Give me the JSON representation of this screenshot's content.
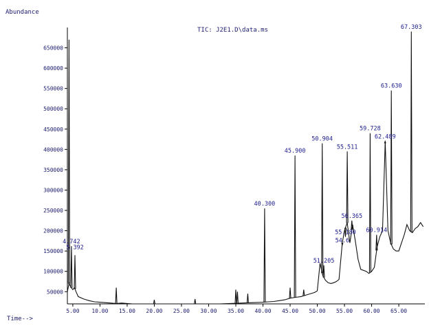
{
  "chart_data": {
    "type": "line",
    "title": "TIC: J2E1.D\\data.ms",
    "ylabel": "Abundance",
    "xlabel": "Time-->",
    "xlim": [
      4.0,
      69.8
    ],
    "ylim": [
      20000,
      700000
    ],
    "x_ticks": [
      {
        "v": 5,
        "label": "5.00"
      },
      {
        "v": 10,
        "label": "10.00"
      },
      {
        "v": 15,
        "label": "15.00"
      },
      {
        "v": 20,
        "label": "20.00"
      },
      {
        "v": 25,
        "label": "25.00"
      },
      {
        "v": 30,
        "label": "30.00"
      },
      {
        "v": 35,
        "label": "35.00"
      },
      {
        "v": 40,
        "label": "40.00"
      },
      {
        "v": 45,
        "label": "45.00"
      },
      {
        "v": 50,
        "label": "50.00"
      },
      {
        "v": 55,
        "label": "55.00"
      },
      {
        "v": 60,
        "label": "60.00"
      },
      {
        "v": 65,
        "label": "65.00"
      }
    ],
    "y_ticks": [
      {
        "v": 50000,
        "label": "50000"
      },
      {
        "v": 100000,
        "label": "100000"
      },
      {
        "v": 150000,
        "label": "150000"
      },
      {
        "v": 200000,
        "label": "200000"
      },
      {
        "v": 250000,
        "label": "250000"
      },
      {
        "v": 300000,
        "label": "300000"
      },
      {
        "v": 350000,
        "label": "350000"
      },
      {
        "v": 400000,
        "label": "400000"
      },
      {
        "v": 450000,
        "label": "450000"
      },
      {
        "v": 500000,
        "label": "500000"
      },
      {
        "v": 550000,
        "label": "550000"
      },
      {
        "v": 600000,
        "label": "600000"
      },
      {
        "v": 650000,
        "label": "650000"
      }
    ],
    "baseline": [
      [
        4.0,
        50000
      ],
      [
        4.3,
        70000
      ],
      [
        4.6,
        62000
      ],
      [
        5.0,
        55000
      ],
      [
        5.3,
        60000
      ],
      [
        5.6,
        50000
      ],
      [
        6.0,
        38000
      ],
      [
        7.0,
        32000
      ],
      [
        8.0,
        28000
      ],
      [
        9.0,
        25000
      ],
      [
        10.0,
        24000
      ],
      [
        11.0,
        23000
      ],
      [
        12.0,
        22000
      ],
      [
        13.0,
        21000
      ],
      [
        14.0,
        22000
      ],
      [
        15.0,
        21000
      ],
      [
        16.0,
        20000
      ],
      [
        18.0,
        20000
      ],
      [
        20.0,
        20000
      ],
      [
        22.0,
        20000
      ],
      [
        24.0,
        20000
      ],
      [
        26.0,
        20000
      ],
      [
        28.0,
        20000
      ],
      [
        30.0,
        20000
      ],
      [
        32.0,
        20000
      ],
      [
        34.0,
        21000
      ],
      [
        36.0,
        22000
      ],
      [
        38.0,
        23000
      ],
      [
        40.0,
        24000
      ],
      [
        41.0,
        25000
      ],
      [
        42.0,
        26000
      ],
      [
        43.0,
        28000
      ],
      [
        44.0,
        30000
      ],
      [
        45.0,
        34000
      ],
      [
        46.0,
        36000
      ],
      [
        47.0,
        38000
      ],
      [
        48.0,
        42000
      ],
      [
        49.0,
        46000
      ],
      [
        49.5,
        48000
      ],
      [
        50.0,
        52000
      ],
      [
        50.5,
        120000
      ],
      [
        51.0,
        90000
      ],
      [
        51.5,
        78000
      ],
      [
        52.0,
        72000
      ],
      [
        52.5,
        70000
      ],
      [
        53.0,
        72000
      ],
      [
        53.5,
        75000
      ],
      [
        54.0,
        80000
      ],
      [
        54.6,
        170000
      ],
      [
        55.0,
        200000
      ],
      [
        55.5,
        220000
      ],
      [
        56.0,
        170000
      ],
      [
        56.5,
        215000
      ],
      [
        57.0,
        175000
      ],
      [
        57.5,
        130000
      ],
      [
        58.0,
        105000
      ],
      [
        59.0,
        100000
      ],
      [
        59.5,
        95000
      ],
      [
        60.0,
        100000
      ],
      [
        60.5,
        110000
      ],
      [
        61.0,
        160000
      ],
      [
        61.5,
        185000
      ],
      [
        62.0,
        200000
      ],
      [
        62.5,
        420000
      ],
      [
        63.0,
        200000
      ],
      [
        63.5,
        170000
      ],
      [
        64.0,
        155000
      ],
      [
        64.5,
        150000
      ],
      [
        65.0,
        150000
      ],
      [
        65.5,
        170000
      ],
      [
        66.0,
        190000
      ],
      [
        66.5,
        215000
      ],
      [
        67.0,
        200000
      ],
      [
        67.5,
        195000
      ],
      [
        68.0,
        205000
      ],
      [
        68.5,
        210000
      ],
      [
        69.0,
        220000
      ],
      [
        69.5,
        210000
      ]
    ],
    "spikes": [
      {
        "x": 4.3,
        "y": 670000
      },
      {
        "x": 4.742,
        "y": 162000
      },
      {
        "x": 5.392,
        "y": 140000
      },
      {
        "x": 13.0,
        "y": 60000
      },
      {
        "x": 20.0,
        "y": 30000
      },
      {
        "x": 27.5,
        "y": 32000
      },
      {
        "x": 35.0,
        "y": 55000
      },
      {
        "x": 35.3,
        "y": 50000
      },
      {
        "x": 37.2,
        "y": 45000
      },
      {
        "x": 40.3,
        "y": 255000
      },
      {
        "x": 45.0,
        "y": 60000
      },
      {
        "x": 45.9,
        "y": 385000
      },
      {
        "x": 47.5,
        "y": 55000
      },
      {
        "x": 50.904,
        "y": 415000
      },
      {
        "x": 51.205,
        "y": 115000
      },
      {
        "x": 54.6,
        "y": 165000
      },
      {
        "x": 55.18,
        "y": 185000
      },
      {
        "x": 55.511,
        "y": 395000
      },
      {
        "x": 56.365,
        "y": 225000
      },
      {
        "x": 59.728,
        "y": 440000
      },
      {
        "x": 60.914,
        "y": 190000
      },
      {
        "x": 62.489,
        "y": 420000
      },
      {
        "x": 63.63,
        "y": 545000
      },
      {
        "x": 67.303,
        "y": 690000
      }
    ],
    "peak_labels": [
      {
        "x": 4.742,
        "y": 162000,
        "label": "4.742"
      },
      {
        "x": 5.392,
        "y": 148000,
        "label": "5.392"
      },
      {
        "x": 40.3,
        "y": 255000,
        "label": "40.300"
      },
      {
        "x": 45.9,
        "y": 385000,
        "label": "45.900"
      },
      {
        "x": 50.904,
        "y": 415000,
        "label": "50.904"
      },
      {
        "x": 51.205,
        "y": 115000,
        "label": "51.205"
      },
      {
        "x": 54.6,
        "y": 165000,
        "label": "54.6"
      },
      {
        "x": 55.18,
        "y": 185000,
        "label": "55.180"
      },
      {
        "x": 55.511,
        "y": 395000,
        "label": "55.511"
      },
      {
        "x": 56.365,
        "y": 225000,
        "label": "56.365"
      },
      {
        "x": 59.728,
        "y": 440000,
        "label": "59.728"
      },
      {
        "x": 60.914,
        "y": 190000,
        "label": "60.914"
      },
      {
        "x": 62.489,
        "y": 420000,
        "label": "62.489"
      },
      {
        "x": 63.63,
        "y": 545000,
        "label": "63.630"
      },
      {
        "x": 67.303,
        "y": 690000,
        "label": "67.303"
      }
    ],
    "grid": false,
    "colors": {
      "trace": "#111111",
      "axis": "#000000",
      "text": "#1a1a6e"
    }
  }
}
